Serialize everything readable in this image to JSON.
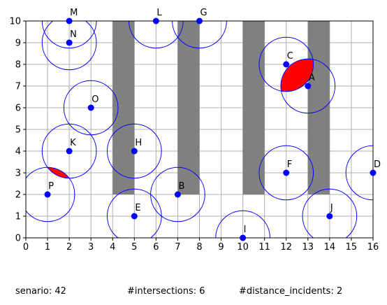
{
  "chart_data": {
    "type": "scatter",
    "xlim": [
      0,
      16
    ],
    "ylim": [
      0,
      10
    ],
    "x_ticks": [
      "0",
      "1",
      "2",
      "3",
      "4",
      "5",
      "6",
      "7",
      "8",
      "9",
      "10",
      "11",
      "12",
      "13",
      "14",
      "15",
      "16"
    ],
    "y_ticks": [
      "0",
      "1",
      "2",
      "3",
      "4",
      "5",
      "6",
      "7",
      "8",
      "9",
      "10"
    ],
    "grid": true,
    "obstacles": [
      {
        "x0": 4,
        "x1": 5,
        "y0": 2,
        "y1": 10
      },
      {
        "x0": 7,
        "x1": 8,
        "y0": 2,
        "y1": 10
      },
      {
        "x0": 10,
        "x1": 11,
        "y0": 2,
        "y1": 10
      },
      {
        "x0": 13,
        "x1": 14,
        "y0": 2,
        "y1": 10
      }
    ],
    "circle_radius": 1.25,
    "points": [
      {
        "label": "M",
        "x": 2,
        "y": 10
      },
      {
        "label": "L",
        "x": 6,
        "y": 10
      },
      {
        "label": "G",
        "x": 8,
        "y": 10
      },
      {
        "label": "N",
        "x": 2,
        "y": 9
      },
      {
        "label": "C",
        "x": 12,
        "y": 8
      },
      {
        "label": "A",
        "x": 13,
        "y": 7
      },
      {
        "label": "O",
        "x": 3,
        "y": 6
      },
      {
        "label": "K",
        "x": 2,
        "y": 4
      },
      {
        "label": "H",
        "x": 5,
        "y": 4
      },
      {
        "label": "F",
        "x": 12,
        "y": 3
      },
      {
        "label": "D",
        "x": 16,
        "y": 3
      },
      {
        "label": "P",
        "x": 1,
        "y": 2
      },
      {
        "label": "B",
        "x": 7,
        "y": 2
      },
      {
        "label": "E",
        "x": 5,
        "y": 1
      },
      {
        "label": "J",
        "x": 14,
        "y": 1
      },
      {
        "label": "I",
        "x": 10,
        "y": 0
      }
    ],
    "conflict_pairs": [
      [
        "C",
        "A"
      ],
      [
        "K",
        "P"
      ]
    ],
    "colors": {
      "point": "#0000ff",
      "circle": "#0000ff",
      "obstacle": "#808080",
      "conflict": "#ff0000",
      "grid": "#b0b0b0"
    }
  },
  "footer": {
    "scenario": "senario: 42",
    "intersections": "#intersections: 6",
    "distance_incidents": "#distance_incidents: 2"
  }
}
